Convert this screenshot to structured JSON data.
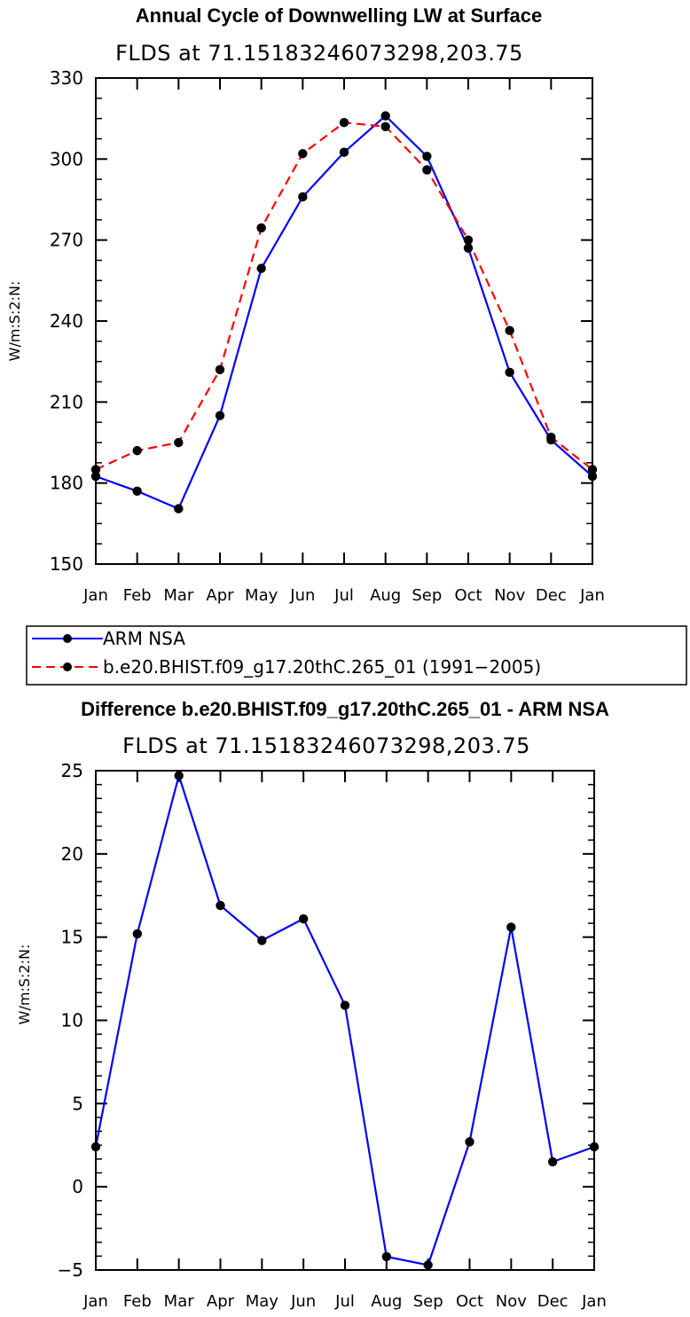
{
  "chart_data": [
    {
      "type": "line",
      "title": "Annual Cycle of Downwelling LW at Surface",
      "subtitle": "FLDS at 71.15183246073298,203.75",
      "ylabel": "W/m:S:2:N:",
      "xlabel": "",
      "categories": [
        "Jan",
        "Feb",
        "Mar",
        "Apr",
        "May",
        "Jun",
        "Jul",
        "Aug",
        "Sep",
        "Oct",
        "Nov",
        "Dec",
        "Jan"
      ],
      "ylim": [
        150,
        330
      ],
      "yticks": [
        150,
        180,
        210,
        240,
        270,
        300,
        330
      ],
      "series": [
        {
          "name": "ARM NSA",
          "color": "#0000ff",
          "dash": "solid",
          "values": [
            182.5,
            177,
            170.5,
            205,
            259.5,
            286,
            302.5,
            316,
            301,
            267,
            221,
            196,
            182.5
          ]
        },
        {
          "name": "b.e20.BHIST.f09_g17.20thC.265_01 (1991−2005)",
          "color": "#ff0000",
          "dash": "dashed",
          "values": [
            185,
            192,
            195,
            222,
            274.5,
            302,
            313.5,
            312,
            296,
            270,
            236.5,
            197,
            185
          ]
        }
      ]
    },
    {
      "type": "line",
      "title": "Difference b.e20.BHIST.f09_g17.20thC.265_01 - ARM NSA",
      "subtitle": "FLDS at 71.15183246073298,203.75",
      "ylabel": "W/m:S:2:N:",
      "xlabel": "",
      "categories": [
        "Jan",
        "Feb",
        "Mar",
        "Apr",
        "May",
        "Jun",
        "Jul",
        "Aug",
        "Sep",
        "Oct",
        "Nov",
        "Dec",
        "Jan"
      ],
      "ylim": [
        -5,
        25
      ],
      "yticks": [
        -5,
        0,
        5,
        10,
        15,
        20,
        25
      ],
      "series": [
        {
          "name": "Difference",
          "color": "#0000ff",
          "dash": "solid",
          "values": [
            2.4,
            15.2,
            24.7,
            16.9,
            14.8,
            16.1,
            10.9,
            -4.2,
            -4.7,
            2.7,
            15.6,
            1.5,
            2.4
          ]
        }
      ]
    }
  ]
}
